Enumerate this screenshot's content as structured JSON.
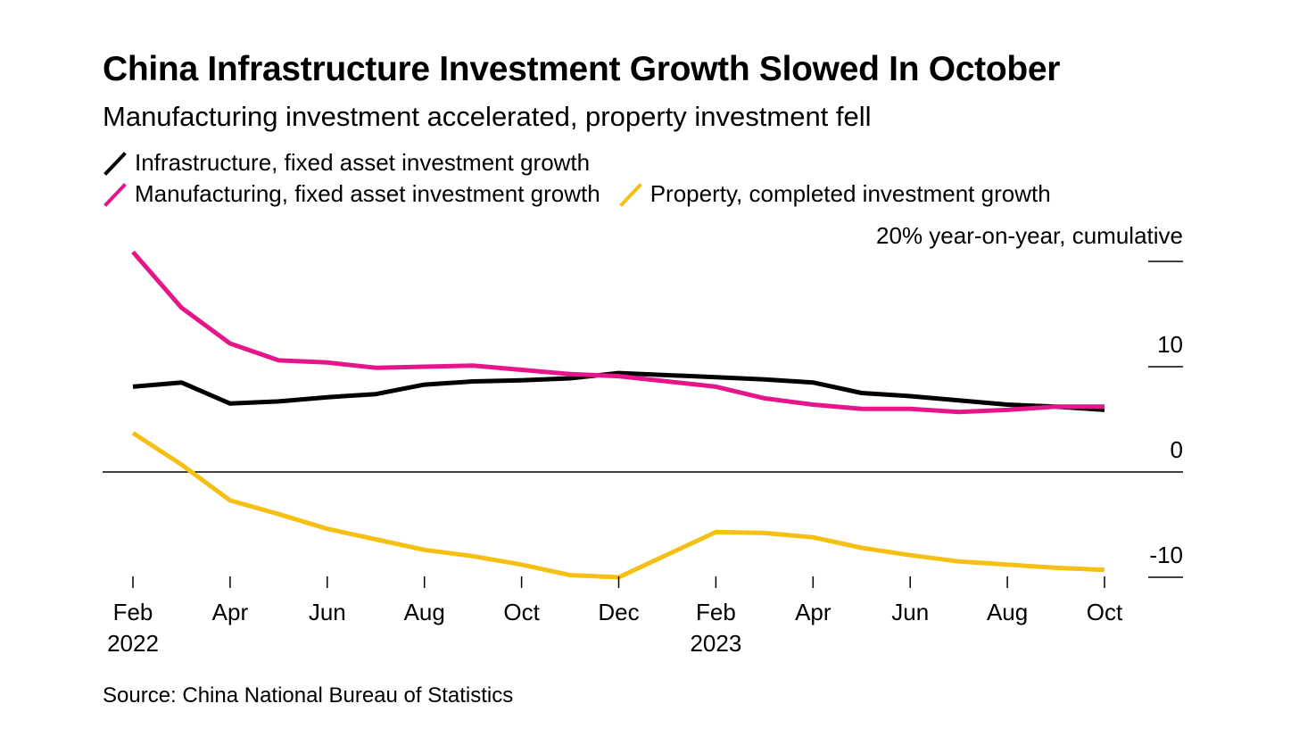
{
  "chart_data": {
    "type": "line",
    "title": "China Infrastructure Investment Growth Slowed In October",
    "subtitle": "Manufacturing investment accelerated, property investment fell",
    "unit_label": "20% year-on-year, cumulative",
    "source": "Source: China National Bureau of Statistics",
    "x": [
      "2022-02",
      "2022-03",
      "2022-04",
      "2022-05",
      "2022-06",
      "2022-07",
      "2022-08",
      "2022-09",
      "2022-10",
      "2022-11",
      "2022-12",
      "2023-01",
      "2023-02",
      "2023-03",
      "2023-04",
      "2023-05",
      "2023-06",
      "2023-07",
      "2023-08",
      "2023-09",
      "2023-10"
    ],
    "x_ticks": [
      {
        "x": "2022-02",
        "label": "Feb",
        "year": "2022"
      },
      {
        "x": "2022-04",
        "label": "Apr",
        "year": ""
      },
      {
        "x": "2022-06",
        "label": "Jun",
        "year": ""
      },
      {
        "x": "2022-08",
        "label": "Aug",
        "year": ""
      },
      {
        "x": "2022-10",
        "label": "Oct",
        "year": ""
      },
      {
        "x": "2022-12",
        "label": "Dec",
        "year": ""
      },
      {
        "x": "2023-02",
        "label": "Feb",
        "year": "2023"
      },
      {
        "x": "2023-04",
        "label": "Apr",
        "year": ""
      },
      {
        "x": "2023-06",
        "label": "Jun",
        "year": ""
      },
      {
        "x": "2023-08",
        "label": "Aug",
        "year": ""
      },
      {
        "x": "2023-10",
        "label": "Oct",
        "year": ""
      }
    ],
    "y_ticks": [
      {
        "value": 20,
        "label": ""
      },
      {
        "value": 10,
        "label": "10"
      },
      {
        "value": 0,
        "label": "0"
      },
      {
        "value": -10,
        "label": "-10"
      }
    ],
    "ylim": [
      -10,
      20
    ],
    "series": [
      {
        "name": "Infrastructure, fixed asset investment growth",
        "color": "#000000",
        "values": [
          8.1,
          8.5,
          6.5,
          6.7,
          7.1,
          7.4,
          8.3,
          8.6,
          8.7,
          8.9,
          9.4,
          null,
          9.0,
          8.8,
          8.5,
          7.5,
          7.2,
          6.8,
          6.4,
          6.2,
          5.9
        ]
      },
      {
        "name": "Manufacturing, fixed asset investment growth",
        "color": "#e6168a",
        "values": [
          20.9,
          15.6,
          12.2,
          10.6,
          10.4,
          9.9,
          10.0,
          10.1,
          9.7,
          9.3,
          9.1,
          null,
          8.1,
          7.0,
          6.4,
          6.0,
          6.0,
          5.7,
          5.9,
          6.2,
          6.2
        ]
      },
      {
        "name": "Property, completed investment growth",
        "color": "#f5c013",
        "values": [
          3.7,
          0.7,
          -2.7,
          -4.0,
          -5.4,
          -6.4,
          -7.4,
          -8.0,
          -8.8,
          -9.8,
          -10.0,
          null,
          -5.7,
          -5.8,
          -6.2,
          -7.2,
          -7.9,
          -8.5,
          -8.8,
          -9.1,
          -9.3
        ]
      }
    ]
  }
}
